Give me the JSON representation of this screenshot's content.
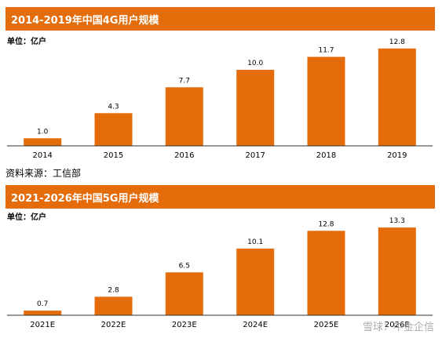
{
  "colors": {
    "bar": "#e46c0a",
    "title_bg": "#e46c0a",
    "axis": "#333333"
  },
  "panels": [
    {
      "title": "2014-2019年中国4G用户规模",
      "unit": "单位：亿户",
      "source": "资料来源：工信部"
    },
    {
      "title": "2021-2026年中国5G用户规模",
      "unit": "单位：亿户",
      "source": ""
    }
  ],
  "watermark": "雪球：中金企信",
  "chart_data": [
    {
      "type": "bar",
      "title": "2014-2019年中国4G用户规模",
      "xlabel": "",
      "ylabel": "单位：亿户",
      "categories": [
        "2014",
        "2015",
        "2016",
        "2017",
        "2018",
        "2019"
      ],
      "values": [
        1.0,
        4.3,
        7.7,
        10.0,
        11.7,
        12.8
      ],
      "labels": [
        "1.0",
        "4.3",
        "7.7",
        "10.0",
        "11.7",
        "12.8"
      ],
      "ylim": [
        0,
        13.5
      ],
      "grid": false
    },
    {
      "type": "bar",
      "title": "2021-2026年中国5G用户规模",
      "xlabel": "",
      "ylabel": "单位：亿户",
      "categories": [
        "2021E",
        "2022E",
        "2023E",
        "2024E",
        "2025E",
        "2026E"
      ],
      "values": [
        0.7,
        2.8,
        6.5,
        10.1,
        12.8,
        13.3
      ],
      "labels": [
        "0.7",
        "2.8",
        "6.5",
        "10.1",
        "12.8",
        "13.3"
      ],
      "ylim": [
        0,
        14.5
      ],
      "grid": false
    }
  ]
}
